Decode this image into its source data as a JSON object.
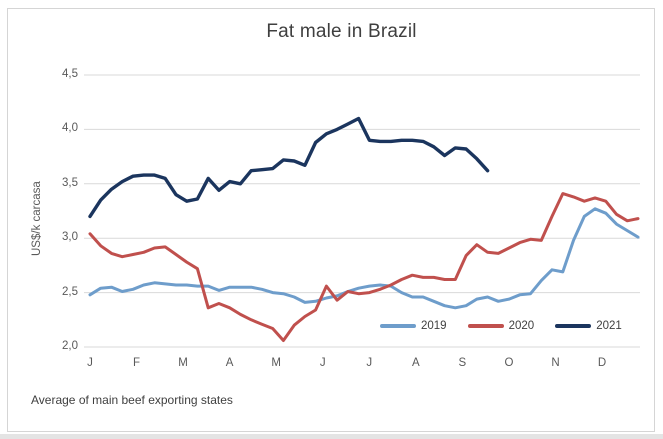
{
  "chart": {
    "title": "Fat male in Brazil",
    "y_axis_title": "US$/k carcasa",
    "footnote": "Average of main beef exporting states"
  },
  "colors": {
    "grid": "#d9d9d9",
    "axis_text": "#595959",
    "title_text": "#3f3f3f"
  },
  "chart_data": {
    "type": "line",
    "title": "Fat male in Brazil",
    "xlabel": "",
    "ylabel": "US$/k carcasa",
    "footnote": "Average of main beef exporting states",
    "x_axis": {
      "tick_labels": [
        "J",
        "F",
        "M",
        "A",
        "M",
        "J",
        "J",
        "A",
        "S",
        "O",
        "N",
        "D"
      ],
      "note": "months Jan-Dec; data points are weekly"
    },
    "ylim": [
      2.0,
      4.5
    ],
    "y_ticks": [
      2.0,
      2.5,
      3.0,
      3.5,
      4.0,
      4.5
    ],
    "y_tick_labels": [
      "2,0",
      "2,5",
      "3,0",
      "3,5",
      "4,0",
      "4,5"
    ],
    "grid": "horizontal",
    "legend": {
      "position": "inside-bottom-right",
      "entries": [
        "2019",
        "2020",
        "2021"
      ]
    },
    "series": [
      {
        "name": "2019",
        "color": "#6e9dcb",
        "values": [
          2.48,
          2.54,
          2.55,
          2.51,
          2.53,
          2.57,
          2.59,
          2.58,
          2.57,
          2.57,
          2.56,
          2.56,
          2.52,
          2.55,
          2.55,
          2.55,
          2.53,
          2.5,
          2.49,
          2.46,
          2.41,
          2.42,
          2.45,
          2.47,
          2.51,
          2.54,
          2.56,
          2.57,
          2.56,
          2.5,
          2.46,
          2.46,
          2.42,
          2.38,
          2.36,
          2.38,
          2.44,
          2.46,
          2.42,
          2.44,
          2.48,
          2.49,
          2.61,
          2.71,
          2.69,
          2.98,
          3.2,
          3.27,
          3.23,
          3.13,
          3.07,
          3.01
        ]
      },
      {
        "name": "2020",
        "color": "#c0504d",
        "values": [
          3.04,
          2.93,
          2.86,
          2.83,
          2.85,
          2.87,
          2.91,
          2.92,
          2.85,
          2.78,
          2.72,
          2.36,
          2.4,
          2.36,
          2.3,
          2.25,
          2.21,
          2.17,
          2.06,
          2.2,
          2.28,
          2.34,
          2.56,
          2.43,
          2.51,
          2.49,
          2.5,
          2.53,
          2.57,
          2.62,
          2.66,
          2.64,
          2.64,
          2.62,
          2.62,
          2.84,
          2.94,
          2.87,
          2.86,
          2.91,
          2.96,
          2.99,
          2.98,
          3.2,
          3.41,
          3.38,
          3.34,
          3.37,
          3.34,
          3.22,
          3.16,
          3.18
        ]
      },
      {
        "name": "2021",
        "color": "#1b355e",
        "values": [
          3.2,
          3.35,
          3.45,
          3.52,
          3.57,
          3.58,
          3.58,
          3.55,
          3.4,
          3.34,
          3.36,
          3.55,
          3.44,
          3.52,
          3.5,
          3.62,
          3.63,
          3.64,
          3.72,
          3.71,
          3.67,
          3.88,
          3.96,
          4.0,
          4.05,
          4.1,
          3.9,
          3.89,
          3.89,
          3.9,
          3.9,
          3.89,
          3.84,
          3.76,
          3.83,
          3.82,
          3.73,
          3.62
        ]
      }
    ]
  }
}
